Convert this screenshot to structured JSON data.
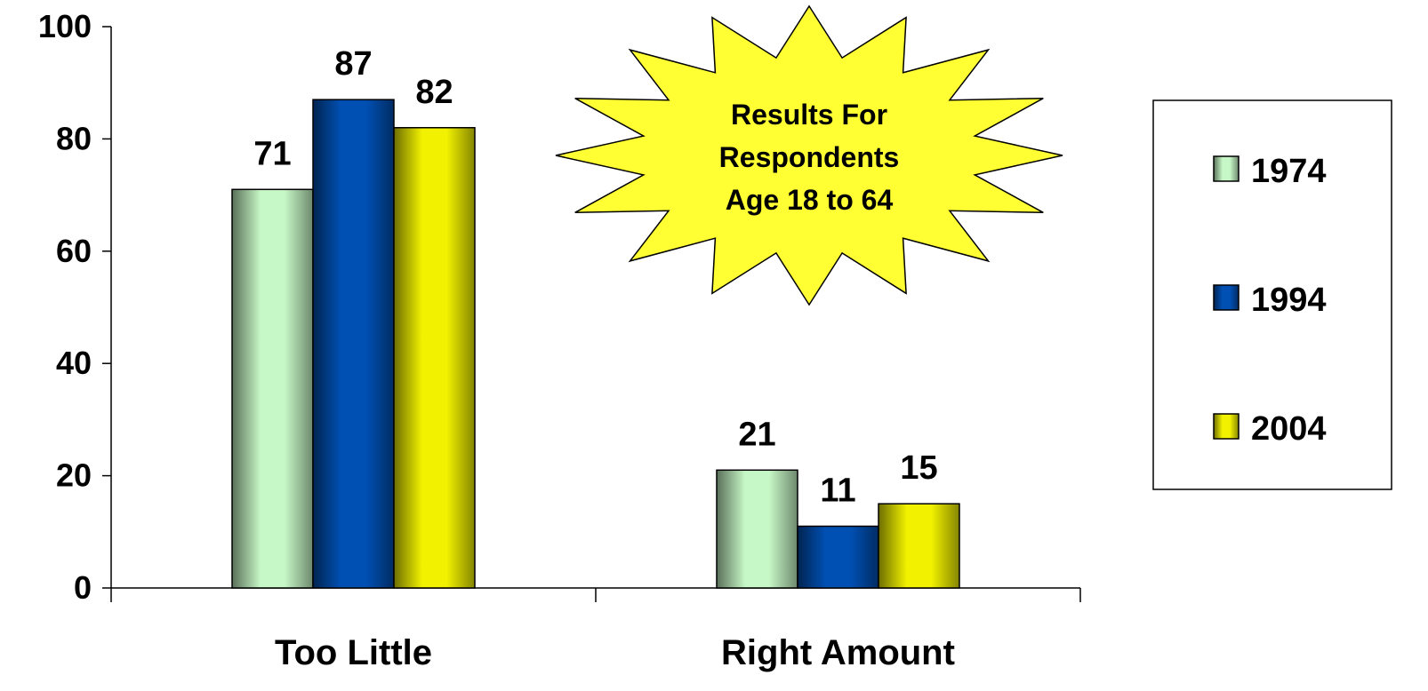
{
  "chart_data": {
    "type": "bar",
    "categories": [
      "Too Little",
      "Right Amount"
    ],
    "series": [
      {
        "name": "1974",
        "values": [
          71,
          21
        ],
        "color": "#c6f7c6"
      },
      {
        "name": "1994",
        "values": [
          87,
          11
        ],
        "color": "#0050b4"
      },
      {
        "name": "2004",
        "values": [
          82,
          15
        ],
        "color": "#f2f200"
      }
    ],
    "ylim": [
      0,
      100
    ],
    "yticks": [
      0,
      20,
      40,
      60,
      80,
      100
    ],
    "data_labels": true,
    "legend": {
      "placement": "right"
    },
    "grid": false,
    "annotation": {
      "shape": "starburst",
      "lines": [
        "Results For",
        "Respondents",
        "Age 18 to 64"
      ],
      "color": "#ffff33"
    }
  }
}
